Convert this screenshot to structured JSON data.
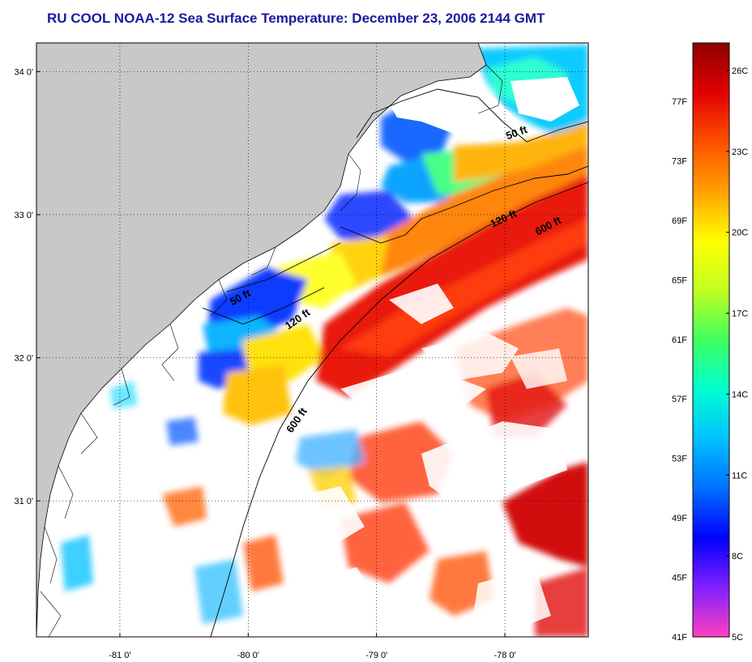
{
  "title": "RU COOL  NOAA-12  Sea Surface Temperature:  December 23, 2006 2144 GMT",
  "map": {
    "lon_range": [
      -81.65,
      -77.35
    ],
    "lat_range": [
      30.05,
      34.2
    ],
    "lon_ticks": [
      {
        "value": -81,
        "label": "-81 0'"
      },
      {
        "value": -80,
        "label": "-80 0'"
      },
      {
        "value": -79,
        "label": "-79 0'"
      },
      {
        "value": -78,
        "label": "-78 0'"
      }
    ],
    "lat_ticks": [
      {
        "value": 34,
        "label": "34 0'"
      },
      {
        "value": 33,
        "label": "33 0'"
      },
      {
        "value": 32,
        "label": "32 0'"
      },
      {
        "value": 31,
        "label": "31 0'"
      }
    ],
    "grid": true,
    "land_color": "#c8c8c8",
    "contour_labels": [
      {
        "text": "50 ft",
        "lon": -77.9,
        "lat": 33.55
      },
      {
        "text": "120 ft",
        "lon": -78.0,
        "lat": 32.95
      },
      {
        "text": "600 ft",
        "lon": -77.65,
        "lat": 32.9
      },
      {
        "text": "50 ft",
        "lon": -80.05,
        "lat": 32.4
      },
      {
        "text": "120 ft",
        "lon": -79.6,
        "lat": 32.25
      },
      {
        "text": "600 ft",
        "lon": -79.6,
        "lat": 31.55
      }
    ]
  },
  "colorbar": {
    "left_labels": [
      "77F",
      "73F",
      "69F",
      "65F",
      "61F",
      "57F",
      "53F",
      "49F",
      "45F",
      "41F"
    ],
    "right_labels": [
      "26C",
      "23C",
      "20C",
      "17C",
      "14C",
      "11C",
      "8C",
      "5C"
    ],
    "colors": [
      "#ff40c0",
      "#8020ff",
      "#0000ff",
      "#0070ff",
      "#00c0ff",
      "#00ffd0",
      "#40ff60",
      "#c0ff20",
      "#ffff00",
      "#ffa000",
      "#ff5000",
      "#e00000",
      "#900000"
    ]
  }
}
